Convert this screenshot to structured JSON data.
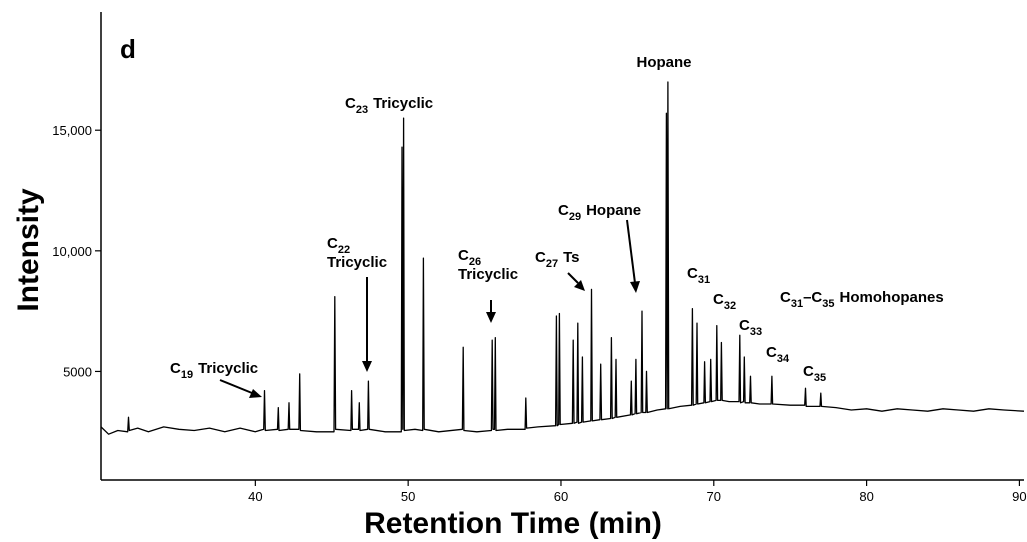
{
  "chart_data": {
    "type": "line",
    "panel_label": "d",
    "x_label": "Retention Time (min)",
    "y_label": "Intensity",
    "color": "#000000",
    "xlim": [
      29.9,
      90.3
    ],
    "ylim": [
      500,
      19900
    ],
    "xticks": [
      40,
      50,
      60,
      70,
      80,
      90
    ],
    "yticks": [
      5000,
      {
        "value": 10000,
        "label": "10,000"
      },
      {
        "value": 15000,
        "label": "15,000"
      }
    ],
    "annotations": [
      {
        "lines": [
          [
            "Hopane"
          ]
        ]
      },
      {
        "lines": [
          [
            "C",
            {
              "sub": "23"
            },
            "Tricyclic"
          ]
        ]
      },
      {
        "lines": [
          [
            "C",
            {
              "sub": "22"
            }
          ],
          [
            "Tricyclic"
          ]
        ]
      },
      {
        "lines": [
          [
            "C",
            {
              "sub": "26"
            }
          ],
          [
            "Tricyclic"
          ]
        ]
      },
      {
        "lines": [
          [
            "C",
            {
              "sub": "27"
            },
            "Ts"
          ]
        ]
      },
      {
        "lines": [
          [
            "C",
            {
              "sub": "29"
            },
            "Hopane"
          ]
        ]
      },
      {
        "lines": [
          [
            "C",
            {
              "sub": "19"
            },
            "Tricyclic"
          ]
        ]
      },
      {
        "lines": [
          [
            "C",
            {
              "sub": "31"
            }
          ]
        ]
      },
      {
        "lines": [
          [
            "C",
            {
              "sub": "32"
            }
          ]
        ]
      },
      {
        "lines": [
          [
            "C",
            {
              "sub": "33"
            }
          ]
        ]
      },
      {
        "lines": [
          [
            "C",
            {
              "sub": "34"
            }
          ]
        ]
      },
      {
        "lines": [
          [
            "C",
            {
              "sub": "35"
            }
          ]
        ]
      },
      {
        "lines": [
          [
            "C",
            {
              "sub": "31"
            },
            "–C",
            {
              "sub": "35"
            },
            "Homohopanes"
          ]
        ]
      }
    ],
    "x": [
      29.9,
      30.4,
      31.0,
      31.65,
      31.7,
      31.75,
      32.3,
      33.0,
      34.0,
      35.0,
      36.0,
      37.0,
      38.0,
      39.0,
      40.0,
      40.55,
      40.6,
      40.65,
      41.45,
      41.5,
      41.55,
      42.15,
      42.2,
      42.25,
      42.85,
      42.9,
      42.95,
      44.0,
      45.15,
      45.2,
      45.25,
      46.25,
      46.3,
      46.35,
      46.75,
      46.8,
      46.85,
      47.35,
      47.4,
      47.45,
      48.5,
      49.55,
      49.6,
      49.65,
      49.7,
      49.75,
      50.45,
      50.95,
      51.0,
      51.05,
      52.0,
      53.55,
      53.6,
      53.65,
      54.5,
      55.45,
      55.5,
      55.55,
      55.65,
      55.7,
      55.75,
      56.5,
      57.65,
      57.7,
      57.75,
      58.5,
      59.65,
      59.7,
      59.75,
      59.85,
      59.9,
      59.95,
      60.75,
      60.8,
      60.85,
      61.05,
      61.1,
      61.15,
      61.35,
      61.4,
      61.45,
      61.95,
      62.0,
      62.05,
      62.55,
      62.6,
      62.65,
      63.25,
      63.3,
      63.35,
      63.55,
      63.6,
      63.65,
      64.55,
      64.6,
      64.65,
      64.85,
      64.9,
      64.95,
      65.25,
      65.3,
      65.35,
      65.55,
      65.6,
      65.65,
      66.3,
      66.85,
      66.9,
      66.95,
      67.0,
      67.05,
      67.8,
      68.55,
      68.6,
      68.65,
      68.85,
      68.9,
      68.95,
      69.35,
      69.4,
      69.45,
      69.75,
      69.8,
      69.85,
      70.15,
      70.2,
      70.25,
      70.45,
      70.5,
      70.55,
      71.0,
      71.65,
      71.7,
      71.75,
      71.95,
      72.0,
      72.05,
      72.35,
      72.4,
      72.45,
      73.0,
      73.75,
      73.8,
      73.85,
      75.0,
      75.95,
      76.0,
      76.05,
      76.95,
      77.0,
      77.05,
      78.0,
      79.0,
      80.0,
      81.0,
      82.0,
      83.0,
      84.0,
      85.0,
      86.0,
      87.0,
      88.0,
      89.0,
      90.3
    ],
    "values": [
      2700,
      2400,
      2550,
      2500,
      3100,
      2550,
      2650,
      2500,
      2700,
      2600,
      2550,
      2650,
      2500,
      2650,
      2500,
      2600,
      4200,
      2550,
      2600,
      3500,
      2550,
      2600,
      3700,
      2600,
      2600,
      4900,
      2550,
      2500,
      2500,
      8100,
      2600,
      2550,
      4200,
      2600,
      2600,
      3700,
      2550,
      2600,
      4600,
      2600,
      2500,
      2500,
      14300,
      2600,
      15500,
      2550,
      2600,
      2550,
      9700,
      2600,
      2500,
      2600,
      6000,
      2550,
      2500,
      2550,
      6300,
      2600,
      2600,
      6400,
      2550,
      2600,
      2600,
      3900,
      2650,
      2700,
      2750,
      7300,
      2750,
      2800,
      7400,
      2800,
      2850,
      6300,
      2850,
      2900,
      7000,
      2850,
      2900,
      5600,
      2900,
      2950,
      8400,
      2950,
      3000,
      5300,
      3000,
      3050,
      6400,
      3050,
      3100,
      5500,
      3100,
      3200,
      4600,
      3200,
      3250,
      5500,
      3250,
      3300,
      7500,
      3300,
      3300,
      5000,
      3300,
      3400,
      3450,
      15700,
      3450,
      17000,
      3450,
      3550,
      3600,
      7600,
      3600,
      3650,
      7000,
      3650,
      3700,
      5400,
      3700,
      3750,
      5500,
      3750,
      3800,
      6900,
      3800,
      3800,
      6200,
      3800,
      3750,
      3750,
      6500,
      3700,
      3750,
      5600,
      3700,
      3700,
      4800,
      3700,
      3650,
      3650,
      4800,
      3650,
      3600,
      3600,
      4300,
      3550,
      3550,
      4100,
      3550,
      3500,
      3400,
      3450,
      3350,
      3450,
      3400,
      3350,
      3450,
      3400,
      3350,
      3450,
      3400,
      3350
    ]
  }
}
